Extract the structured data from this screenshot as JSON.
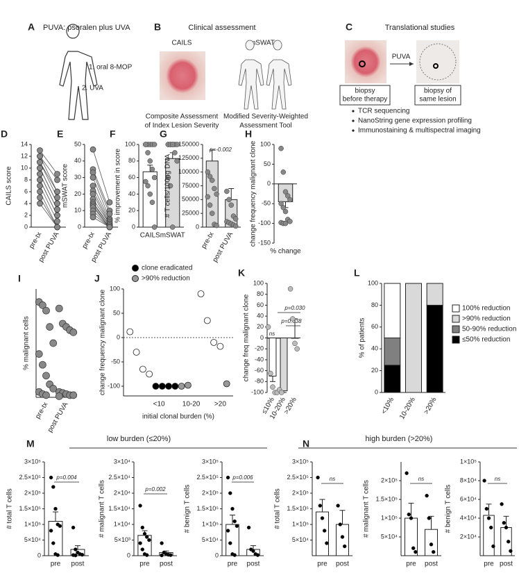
{
  "panels": {
    "A": {
      "label": "A",
      "title": "PUVA: psoralen plus UVA",
      "steps": [
        "1. oral 8-MOP",
        "2. UVA"
      ]
    },
    "B": {
      "label": "B",
      "title": "Clinical assessment",
      "tools": [
        {
          "name": "CAILS",
          "lines": [
            "Composite Assessment",
            "of Index Lesion Severity"
          ]
        },
        {
          "name": "mSWAT",
          "lines": [
            "Modified Severity-Weighted",
            "Assessment Tool"
          ]
        }
      ]
    },
    "C": {
      "label": "C",
      "title": "Translational studies",
      "arrow": "PUVA",
      "before": [
        "biopsy",
        "before therapy"
      ],
      "after": [
        "biopsy of",
        "same lesion"
      ],
      "bullets": [
        "TCR sequencing",
        "NanoString gene expression profiling",
        "Immunostaining & multispectral imaging"
      ]
    },
    "M": {
      "label": "M",
      "title": "low burden (≤20%)"
    },
    "N": {
      "label": "N",
      "title": "high burden (>20%)"
    }
  },
  "chart_data": [
    {
      "type": "paired",
      "label": "D",
      "ylabel": "CAILS score",
      "categories": [
        "pre-tx",
        "post PUVA"
      ],
      "ylim": [
        0,
        14
      ],
      "yticks": [
        0,
        2,
        4,
        6,
        8,
        10,
        12,
        14
      ],
      "color": "#888888",
      "values": [
        [
          13,
          9
        ],
        [
          12,
          8
        ],
        [
          12,
          6
        ],
        [
          11,
          6
        ],
        [
          11,
          5
        ],
        [
          10,
          4
        ],
        [
          10,
          4
        ],
        [
          9,
          3
        ],
        [
          9,
          3
        ],
        [
          8,
          2
        ],
        [
          8,
          2
        ],
        [
          7,
          1
        ],
        [
          6,
          0
        ],
        [
          5,
          0
        ],
        [
          4,
          0
        ]
      ]
    },
    {
      "type": "paired",
      "label": "E",
      "ylabel": "mSWAT score",
      "categories": [
        "pre-tx",
        "post PUVA"
      ],
      "ylim": [
        0,
        50
      ],
      "yticks": [
        0,
        10,
        20,
        30,
        40,
        50
      ],
      "color": "#888888",
      "values": [
        [
          47,
          15
        ],
        [
          35,
          10
        ],
        [
          33,
          8
        ],
        [
          30,
          5
        ],
        [
          25,
          4
        ],
        [
          22,
          3
        ],
        [
          20,
          2
        ],
        [
          17,
          2
        ],
        [
          15,
          1
        ],
        [
          14,
          1
        ],
        [
          13,
          0
        ],
        [
          12,
          0
        ],
        [
          10,
          0
        ],
        [
          8,
          0
        ],
        [
          6,
          0
        ]
      ]
    },
    {
      "type": "bar",
      "label": "F",
      "ylabel": "% improvement in score",
      "categories": [
        "CAILS",
        "mSWAT"
      ],
      "ylim": [
        0,
        100
      ],
      "yticks": [
        0,
        20,
        40,
        60,
        80,
        100
      ],
      "values": [
        67,
        83
      ],
      "errors": [
        8,
        7
      ],
      "bar_colors": [
        "#ffffff",
        "#d9d9d9"
      ],
      "point_color": "#888888",
      "points": [
        [
          100,
          100,
          100,
          100,
          100,
          100,
          90,
          80,
          70,
          60,
          55,
          50,
          40,
          30,
          0
        ],
        [
          100,
          100,
          100,
          100,
          100,
          100,
          100,
          100,
          90,
          80,
          60,
          50,
          0
        ]
      ]
    },
    {
      "type": "bar",
      "label": "G",
      "ylabel": "# T cells/100ng DNA",
      "categories": [
        "pre-tx",
        "post PUVA"
      ],
      "ylim": [
        0,
        150000
      ],
      "yticks": [
        0,
        25000,
        50000,
        75000,
        100000,
        125000,
        150000
      ],
      "values": [
        120000,
        50000
      ],
      "errors": [
        20000,
        20000
      ],
      "bar_colors": [
        "#d9d9d9",
        "#d9d9d9"
      ],
      "point_color": "#888888",
      "points": [
        [
          100000,
          92000,
          85000,
          70000,
          60000,
          55000,
          40000,
          25000,
          5000,
          3000
        ],
        [
          65000,
          50000,
          40000,
          20000,
          15000,
          10000,
          8000,
          6000,
          4000,
          2000
        ]
      ],
      "annotations": [
        "p=-0.002"
      ]
    },
    {
      "type": "bar",
      "label": "H",
      "ylabel": "change frequency malignant clone",
      "categories": [
        "% change"
      ],
      "ylim": [
        -150,
        100
      ],
      "yticks": [
        -150,
        -100,
        -50,
        0,
        50,
        100
      ],
      "values": [
        -45
      ],
      "errors": [
        15
      ],
      "bar_colors": [
        "#d9d9d9"
      ],
      "point_color": "#888888",
      "points": [
        [
          90,
          30,
          -20,
          -30,
          -40,
          -50,
          -60,
          -70,
          -90,
          -95,
          -98,
          -100,
          -100
        ]
      ]
    },
    {
      "type": "dots",
      "label": "I",
      "ylabel": "% malignant cells",
      "categories": [
        "pre-tx",
        "post PUVA"
      ],
      "ylim": [
        0,
        100
      ],
      "color": "#888888",
      "points": [
        [
          88,
          85,
          80,
          65,
          50,
          40,
          30,
          20,
          12,
          8,
          5,
          3,
          2
        ],
        [
          82,
          68,
          65,
          62,
          60,
          5,
          4,
          3,
          2,
          2,
          1
        ]
      ]
    },
    {
      "type": "scatter",
      "label": "J",
      "ylabel": "change frequency malignant clone",
      "xlabel": "initial clonal burden (%)",
      "xlim": [
        0,
        17
      ],
      "xticks": [
        {
          "value": 5.5,
          "label": "<10"
        },
        {
          "value": 10.5,
          "label": "10-20"
        },
        {
          "value": 15,
          "label": ">20"
        }
      ],
      "ylim": [
        -120,
        100
      ],
      "yticks": [
        -100,
        -50,
        0,
        50,
        100
      ],
      "series": [
        {
          "color": "#ffffff",
          "x": [
            1,
            2,
            3,
            4,
            12,
            13,
            14,
            15
          ],
          "values": [
            12,
            -30,
            -65,
            -75,
            90,
            35,
            -10,
            -18
          ]
        },
        {
          "name": "clone eradicated",
          "color": "#000000",
          "x": [
            5,
            6,
            7,
            8
          ],
          "values": [
            -100,
            -100,
            -100,
            -100
          ]
        },
        {
          "name": ">90% reduction",
          "color": "#999999",
          "x": [
            9,
            10,
            16
          ],
          "values": [
            -100,
            -98,
            -95
          ]
        }
      ]
    },
    {
      "type": "bar",
      "label": "K",
      "ylabel": "change freq malignant clone",
      "categories": [
        "≤10%",
        "10-20%",
        ">20%"
      ],
      "ylim": [
        -100,
        100
      ],
      "yticks": [
        -100,
        -80,
        -60,
        -40,
        -20,
        0,
        20,
        40,
        60,
        80,
        100
      ],
      "values": [
        -70,
        -97,
        0
      ],
      "errors": [
        10,
        3,
        35
      ],
      "bar_colors": [
        "#ffffff",
        "#d9d9d9",
        "#ffffff"
      ],
      "point_color": "#bbbbbb",
      "points": [
        [
          20,
          -65,
          -90,
          -100,
          -100
        ],
        [
          -95,
          -100
        ],
        [
          90,
          35,
          -10,
          -20
        ]
      ],
      "annotations": [
        "p=0.030",
        "p=0.038",
        "ns"
      ]
    },
    {
      "type": "stacked_bar",
      "label": "L",
      "ylabel": "% of patients",
      "categories": [
        "<10%",
        "10-20%",
        ">20%"
      ],
      "ylim": [
        0,
        100
      ],
      "yticks": [
        0,
        20,
        40,
        60,
        80,
        100
      ],
      "series": [
        {
          "name": "≤50% reduction",
          "color": "#000000",
          "values": [
            25,
            0,
            80
          ]
        },
        {
          "name": "50-90% reduction",
          "color": "#808080",
          "values": [
            25,
            0,
            0
          ]
        },
        {
          "name": ">90% reduction",
          "color": "#d9d9d9",
          "values": [
            0,
            100,
            20
          ]
        },
        {
          "name": "100% reduction",
          "color": "#ffffff",
          "values": [
            50,
            0,
            0
          ]
        }
      ]
    },
    {
      "type": "bar",
      "ylabel": "# total T cells",
      "categories": [
        "pre",
        "post"
      ],
      "ylim": [
        0,
        300000
      ],
      "yticks": [
        0,
        {
          "value": 50000,
          "label": "5×10⁴"
        },
        {
          "value": 100000,
          "label": "1×10⁵"
        },
        {
          "value": 150000,
          "label": "1.5×10⁵"
        },
        {
          "value": 200000,
          "label": "2×10⁵"
        },
        {
          "value": 250000,
          "label": "2.5×10⁵"
        },
        {
          "value": 300000,
          "label": "3×10⁵"
        }
      ],
      "values": [
        110000,
        20000
      ],
      "errors": [
        30000,
        12000
      ],
      "bar_colors": [
        "#ffffff",
        "#ffffff"
      ],
      "point_color": "#000000",
      "points": [
        [
          250000,
          220000,
          150000,
          100000,
          95000,
          80000,
          40000,
          5000,
          2000
        ],
        [
          90000,
          20000,
          10000,
          5000,
          3000,
          2000,
          1000
        ]
      ],
      "annotations": [
        "p=0.004"
      ]
    },
    {
      "type": "bar",
      "ylabel": "# malignant T cells",
      "categories": [
        "pre",
        "post"
      ],
      "ylim": [
        0,
        30000
      ],
      "yticks": [
        0,
        {
          "value": 5000,
          "label": "5×10³"
        },
        {
          "value": 10000,
          "label": "1×10⁴"
        },
        {
          "value": 15000,
          "label": "1.5×10⁴"
        },
        {
          "value": 20000,
          "label": "2×10⁴"
        },
        {
          "value": 25000,
          "label": "2.5×10⁴"
        },
        {
          "value": 30000,
          "label": "3×10⁴"
        }
      ],
      "values": [
        6500,
        1000
      ],
      "errors": [
        1500,
        500
      ],
      "bar_colors": [
        "#ffffff",
        "#ffffff"
      ],
      "point_color": "#000000",
      "points": [
        [
          16000,
          9000,
          7000,
          6000,
          5000,
          4000,
          2000,
          500,
          200
        ],
        [
          4000,
          1000,
          500,
          300,
          200,
          100
        ]
      ],
      "annotations": [
        "p=0.002"
      ]
    },
    {
      "type": "bar",
      "ylabel": "# benign T cells",
      "categories": [
        "pre",
        "post"
      ],
      "ylim": [
        0,
        300000
      ],
      "yticks": [
        0,
        {
          "value": 50000,
          "label": "5×10⁴"
        },
        {
          "value": 100000,
          "label": "1×10⁵"
        },
        {
          "value": 150000,
          "label": "1.5×10⁵"
        },
        {
          "value": 200000,
          "label": "2×10⁵"
        },
        {
          "value": 250000,
          "label": "2.5×10⁵"
        },
        {
          "value": 300000,
          "label": "3×10⁵"
        }
      ],
      "values": [
        100000,
        20000
      ],
      "errors": [
        30000,
        12000
      ],
      "bar_colors": [
        "#ffffff",
        "#ffffff"
      ],
      "point_color": "#000000",
      "points": [
        [
          250000,
          200000,
          150000,
          110000,
          95000,
          80000,
          40000,
          5000,
          2000
        ],
        [
          90000,
          20000,
          15000,
          5000,
          2000
        ]
      ],
      "annotations": [
        "p=0.006"
      ]
    },
    {
      "type": "bar",
      "ylabel": "# total T cells",
      "categories": [
        "pre",
        "post"
      ],
      "ylim": [
        0,
        300000
      ],
      "yticks": [
        {
          "value": 50000,
          "label": "5×10⁴"
        },
        {
          "value": 100000,
          "label": "1×10⁵"
        },
        {
          "value": 150000,
          "label": "1.5×10⁵"
        },
        {
          "value": 200000,
          "label": "2×10⁵"
        },
        {
          "value": 250000,
          "label": "2.5×10⁵"
        },
        {
          "value": 300000,
          "label": "3×10⁵"
        }
      ],
      "values": [
        140000,
        100000
      ],
      "errors": [
        40000,
        45000
      ],
      "bar_colors": [
        "#ffffff",
        "#ffffff"
      ],
      "point_color": "#000000",
      "points": [
        [
          250000,
          160000,
          120000,
          80000,
          40000
        ],
        [
          160000,
          100000,
          60000,
          30000
        ]
      ],
      "annotations": [
        "ns"
      ]
    },
    {
      "type": "bar",
      "ylabel": "# malignant T cells",
      "categories": [
        "pre",
        "post"
      ],
      "ylim": [
        0,
        250000
      ],
      "yticks": [
        {
          "value": 50000,
          "label": "5×10⁴"
        },
        {
          "value": 100000,
          "label": "1×10⁵"
        },
        {
          "value": 150000,
          "label": "1.5×10⁵"
        },
        {
          "value": 200000,
          "label": "2×10⁵"
        }
      ],
      "values": [
        100000,
        70000
      ],
      "errors": [
        40000,
        35000
      ],
      "bar_colors": [
        "#ffffff",
        "#ffffff"
      ],
      "point_color": "#000000",
      "points": [
        [
          220000,
          110000,
          100000,
          20000,
          10000
        ],
        [
          160000,
          100000,
          30000,
          10000
        ]
      ],
      "annotations": [
        "ns"
      ]
    },
    {
      "type": "bar",
      "ylabel": "# benign T cells",
      "categories": [
        "pre",
        "post"
      ],
      "ylim": [
        0,
        100000
      ],
      "yticks": [
        {
          "value": 20000,
          "label": "2×10⁴"
        },
        {
          "value": 40000,
          "label": "4×10⁴"
        },
        {
          "value": 60000,
          "label": "6×10⁴"
        },
        {
          "value": 80000,
          "label": "8×10⁴"
        },
        {
          "value": 100000,
          "label": "1×10⁵"
        }
      ],
      "values": [
        43000,
        30000
      ],
      "errors": [
        12000,
        12000
      ],
      "bar_colors": [
        "#ffffff",
        "#ffffff"
      ],
      "point_color": "#000000",
      "points": [
        [
          80000,
          50000,
          40000,
          30000,
          10000
        ],
        [
          55000,
          35000,
          30000,
          15000,
          5000
        ]
      ],
      "annotations": [
        "ns"
      ]
    }
  ]
}
